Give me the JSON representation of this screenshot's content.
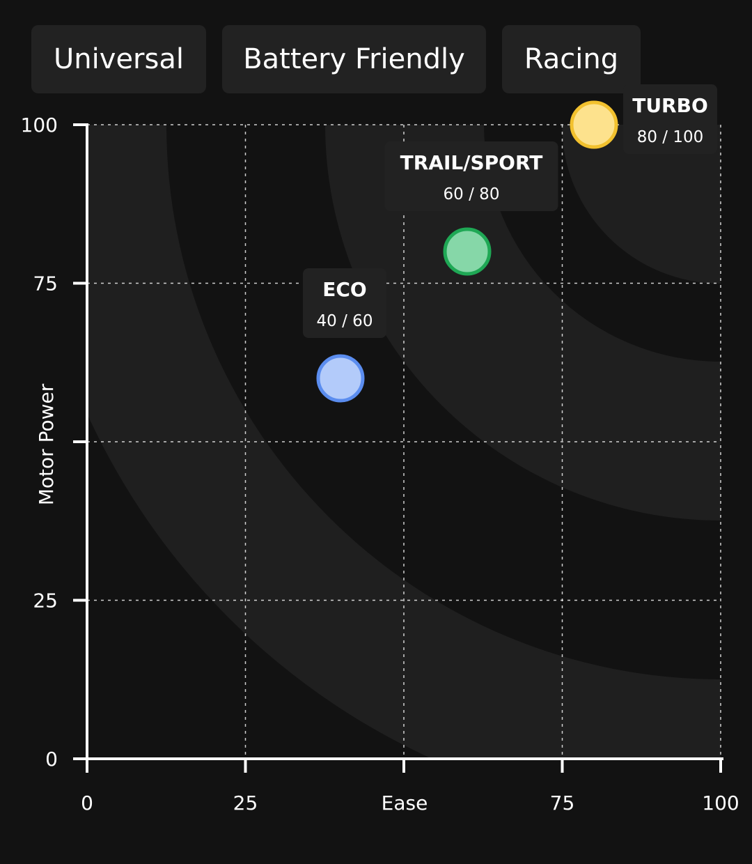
{
  "tabs": [
    {
      "label": "Universal"
    },
    {
      "label": "Battery Friendly"
    },
    {
      "label": "Racing"
    }
  ],
  "colors": {
    "background": "#121212",
    "band": "#1f1f1f",
    "tab_bg": "#222222",
    "label_bg": "#222222",
    "eco_fill": "#b3cbfa",
    "eco_stroke": "#5b8def",
    "trail_fill": "#86d7a8",
    "trail_stroke": "#1fa855",
    "turbo_fill": "#fde28d",
    "turbo_stroke": "#f2c12e"
  },
  "chart_data": {
    "type": "scatter",
    "xlabel": "Ease",
    "ylabel": "Motor Power",
    "xlim": [
      0,
      100
    ],
    "ylim": [
      0,
      100
    ],
    "x_ticks": [
      "0",
      "25",
      "",
      "75",
      "100"
    ],
    "y_ticks": [
      "0",
      "25",
      "",
      "75",
      "100"
    ],
    "grid": true,
    "points": [
      {
        "name": "ECO",
        "x": 40,
        "y": 60,
        "value_label": "40 / 60",
        "color": "eco"
      },
      {
        "name": "TRAIL/SPORT",
        "x": 60,
        "y": 80,
        "value_label": "60 / 80",
        "color": "trail"
      },
      {
        "name": "TURBO",
        "x": 80,
        "y": 100,
        "value_label": "80 / 100",
        "color": "turbo"
      }
    ]
  }
}
